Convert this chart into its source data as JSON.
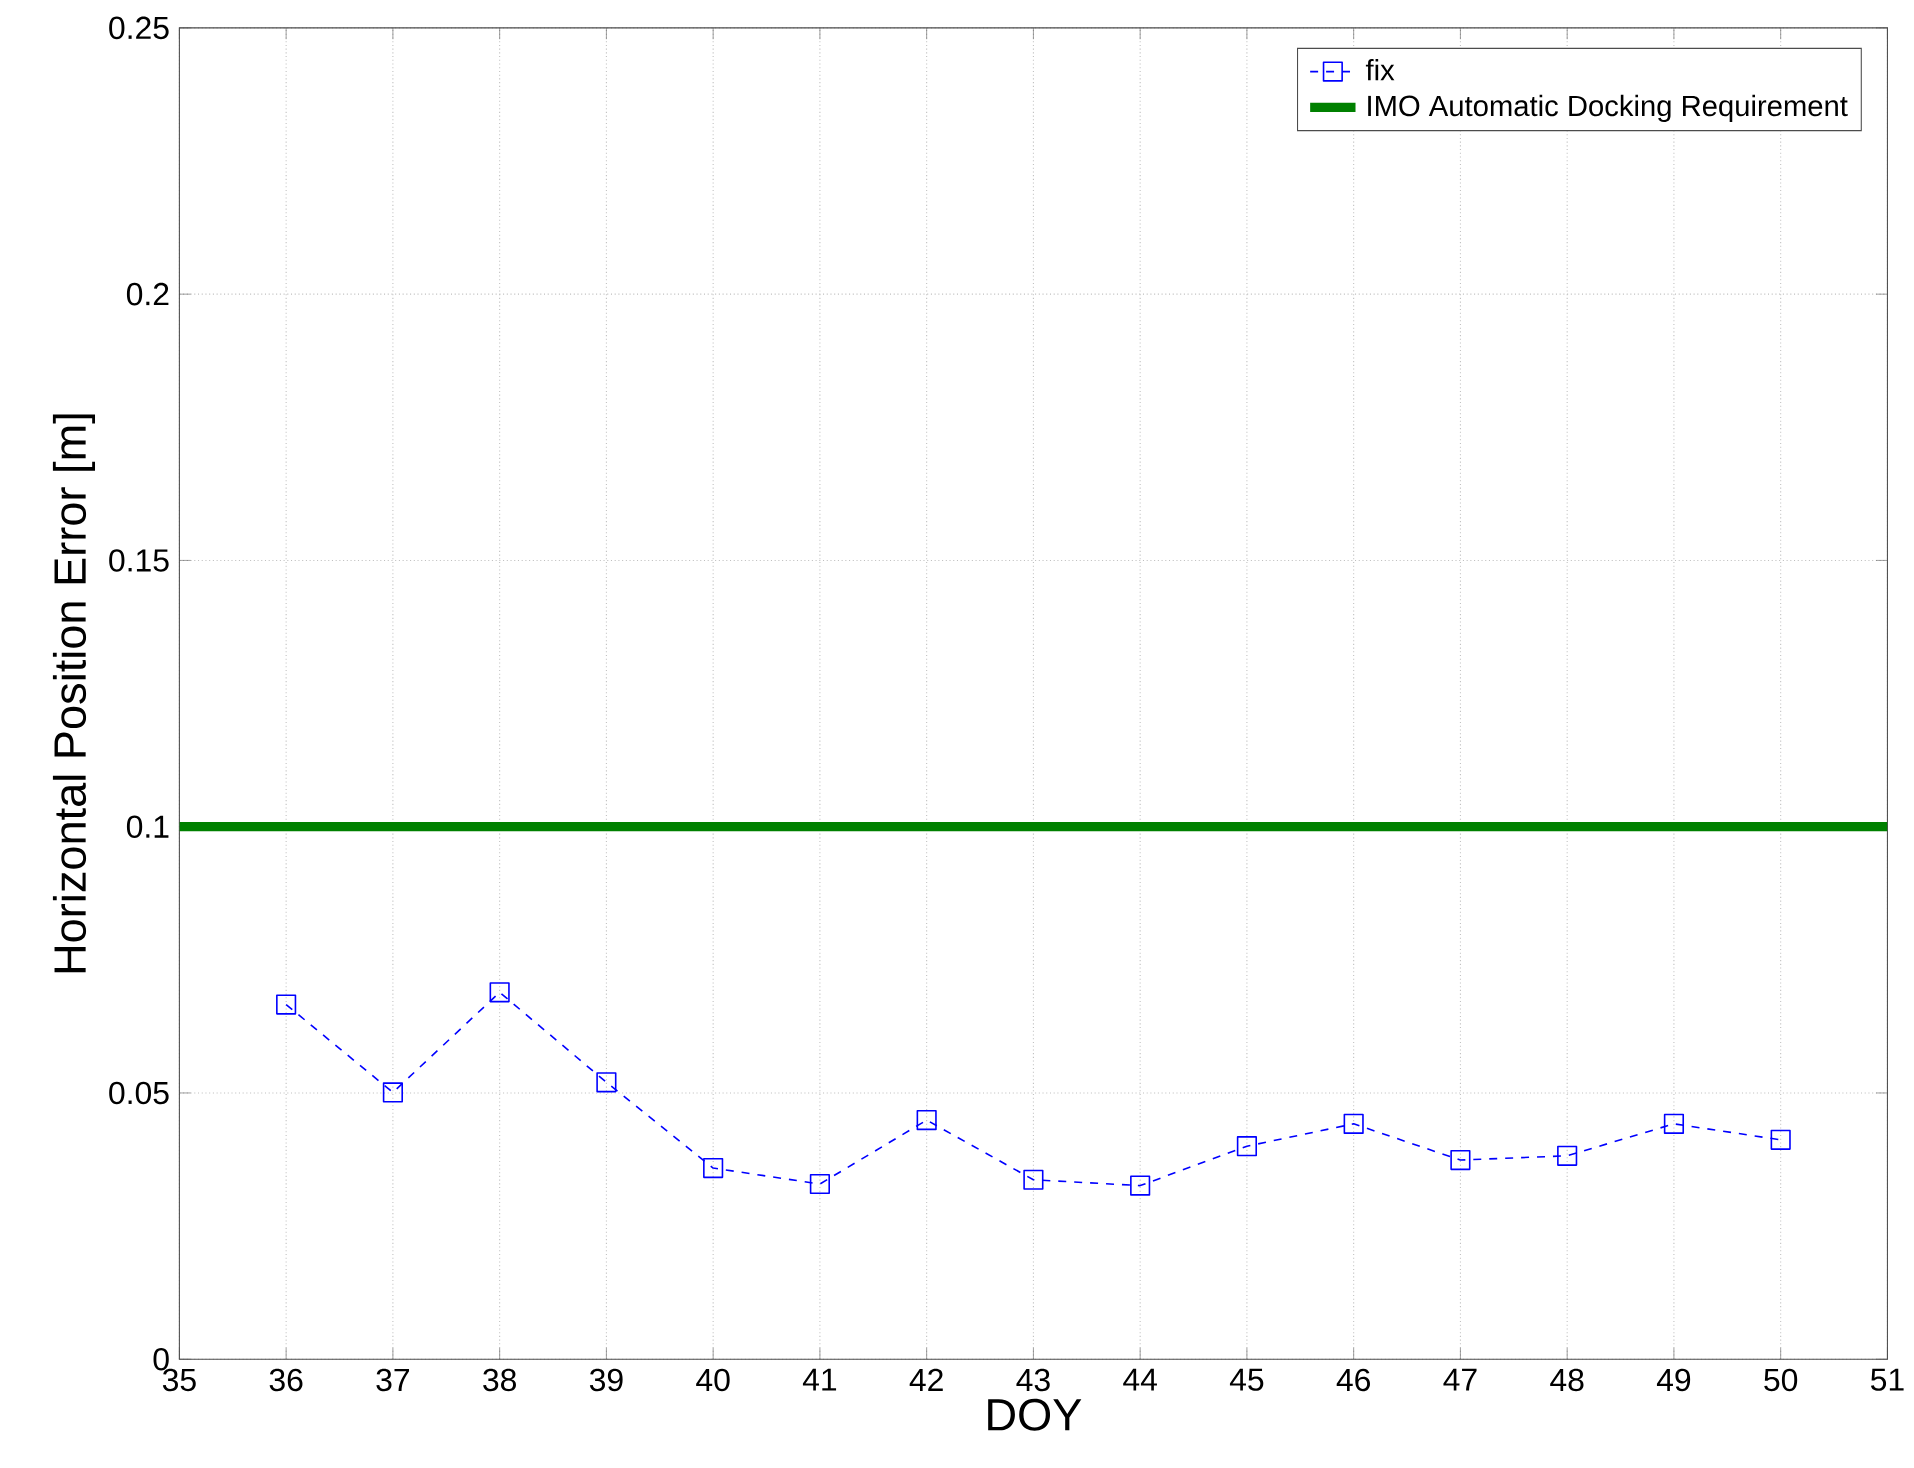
{
  "chart_data": {
    "type": "line",
    "xlabel": "DOY",
    "ylabel": "Horizontal Position Error [m]",
    "x": [
      36,
      37,
      38,
      39,
      40,
      41,
      42,
      43,
      44,
      45,
      46,
      47,
      48,
      49,
      50
    ],
    "series": [
      {
        "name": "fix",
        "color": "#0000ff",
        "marker": "square",
        "line_style": "dashed",
        "values": [
          0.0666,
          0.0501,
          0.0689,
          0.052,
          0.0359,
          0.0329,
          0.0449,
          0.0337,
          0.0326,
          0.04,
          0.0442,
          0.0374,
          0.0382,
          0.0442,
          0.0412
        ]
      }
    ],
    "ref_lines": [
      {
        "axis": "y",
        "value": 0.1,
        "label": "IMO Automatic Docking Requirement",
        "color": "#008000"
      }
    ],
    "xlim": [
      35,
      51
    ],
    "ylim": [
      0,
      0.25
    ],
    "xticks": [
      35,
      36,
      37,
      38,
      39,
      40,
      41,
      42,
      43,
      44,
      45,
      46,
      47,
      48,
      49,
      50,
      51
    ],
    "yticks": [
      0,
      0.05,
      0.1,
      0.15,
      0.2,
      0.25
    ],
    "grid": true,
    "legend": "top right"
  }
}
